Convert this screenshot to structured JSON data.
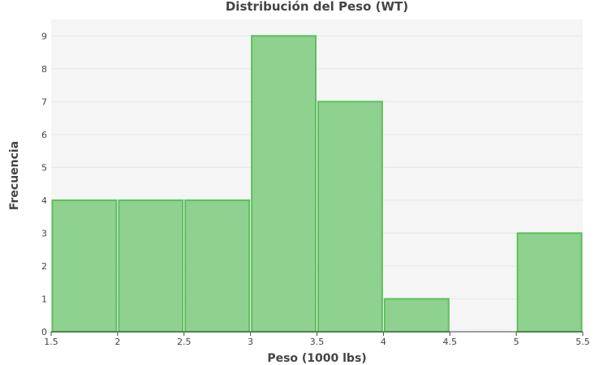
{
  "chart_data": {
    "type": "bar",
    "title": "Distribución del Peso (WT)",
    "xlabel": "Peso (1000 lbs)",
    "ylabel": "Frecuencia",
    "xlim": [
      1.5,
      5.5
    ],
    "ylim": [
      0,
      9.5
    ],
    "x_ticks": [
      "1.5",
      "2",
      "2.5",
      "3",
      "3.5",
      "4",
      "4.5",
      "5",
      "5.5"
    ],
    "y_ticks": [
      "0",
      "1",
      "2",
      "3",
      "4",
      "5",
      "6",
      "7",
      "8",
      "9"
    ],
    "bins": [
      {
        "x0": 1.5,
        "x1": 2.0,
        "count": 4
      },
      {
        "x0": 2.0,
        "x1": 2.5,
        "count": 4
      },
      {
        "x0": 2.5,
        "x1": 3.0,
        "count": 4
      },
      {
        "x0": 3.0,
        "x1": 3.5,
        "count": 9
      },
      {
        "x0": 3.5,
        "x1": 4.0,
        "count": 7
      },
      {
        "x0": 4.0,
        "x1": 4.5,
        "count": 1
      },
      {
        "x0": 4.5,
        "x1": 5.0,
        "count": 0
      },
      {
        "x0": 5.0,
        "x1": 5.5,
        "count": 3
      }
    ],
    "grid": true,
    "colors": {
      "bar_fill": "#8fd18f",
      "bar_stroke": "#5cbf5c",
      "plot_bg": "#f5f5f5",
      "grid": "#e6e6e6",
      "text": "#444444"
    }
  }
}
